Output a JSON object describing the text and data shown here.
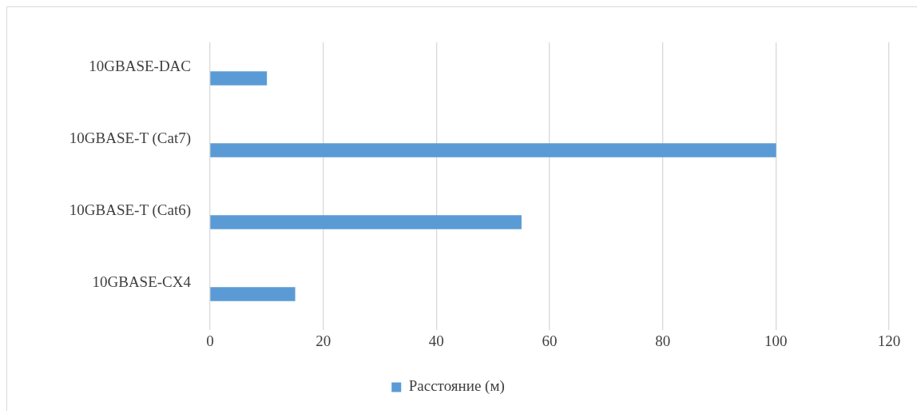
{
  "chart_data": {
    "type": "bar",
    "orientation": "horizontal",
    "categories": [
      "10GBASE-DAC",
      "10GBASE-T (Cat7)",
      "10GBASE-T (Cat6)",
      "10GBASE-CX4"
    ],
    "series": [
      {
        "name": "Расстояние (м)",
        "color": "#5b9bd5",
        "values": [
          10,
          100,
          55,
          15
        ]
      }
    ],
    "xlim": [
      0,
      120
    ],
    "xticks": [
      0,
      20,
      40,
      60,
      80,
      100,
      120
    ],
    "grid": "x",
    "legend": "bottom"
  }
}
